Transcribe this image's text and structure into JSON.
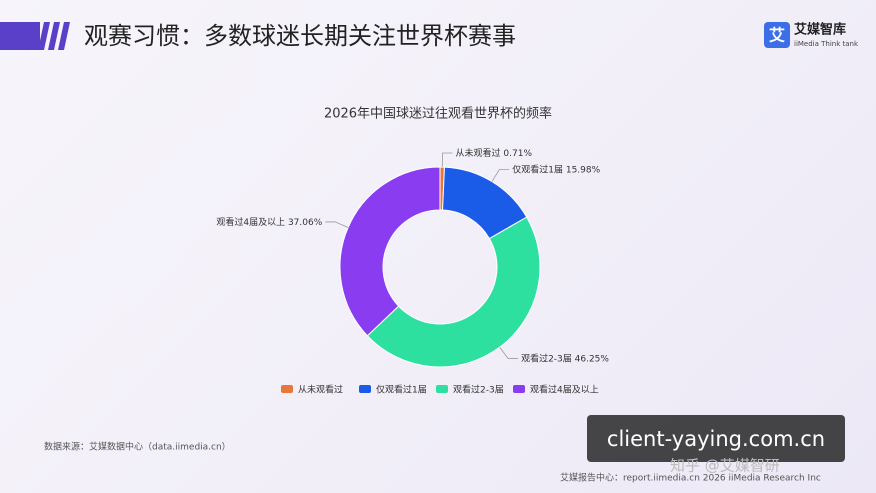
{
  "header": {
    "title": "观赛习惯：多数球迷长期关注世界杯赛事",
    "logo": "艾媒智库",
    "logo_sub": "iiMedia Think tank"
  },
  "chart_data": {
    "type": "pie",
    "donut": true,
    "title": "2026年中国球迷过往观看世界杯的频率",
    "categories": [
      "从未观看过",
      "仅观看过1届",
      "观看过2-3届",
      "观看过4届及以上"
    ],
    "values": [
      0.71,
      15.98,
      46.25,
      37.06
    ],
    "value_labels": [
      "0.71%",
      "15.98%",
      "46.25%",
      "37.06%"
    ],
    "colors": [
      "#e8773a",
      "#1a5ce8",
      "#2ee0a0",
      "#8a3cf0"
    ],
    "legend": "bottom"
  },
  "source": "数据来源：艾媒数据中心（data.iimedia.cn）",
  "footer": "艾媒报告中心：report.iimedia.cn  2026 iiMedia Research Inc",
  "watermark": {
    "site": "client-yaying.com.cn",
    "author": "知乎 @艾媒智研"
  }
}
